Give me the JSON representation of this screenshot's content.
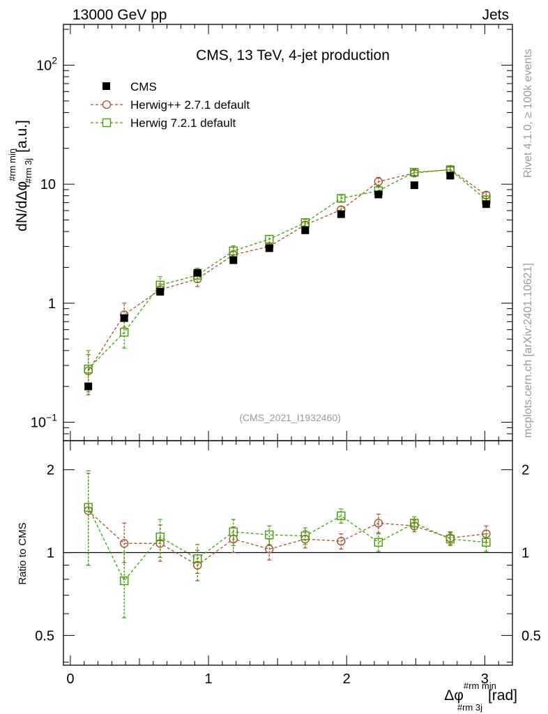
{
  "header": {
    "left": "13000 GeV pp",
    "right": "Jets"
  },
  "side_text": {
    "top": "Rivet 4.1.0, ≥ 100k events",
    "bottom": "mcplots.cern.ch [arXiv:2401.10621]"
  },
  "analysis_id": "(CMS_2021_I1932460)",
  "colors": {
    "cms": "#000000",
    "herwigpp": "#a0522d",
    "herwig7": "#3f9f00"
  },
  "chart_data": [
    {
      "type": "scatter",
      "title": "CMS, 13 TeV, 4-jet production",
      "ylabel": {
        "main": "dN/dΔφ",
        "sup": "#rm min",
        "sub": "#rm 3j",
        "unit": "[a.u.]"
      },
      "yscale": "log",
      "ylim": [
        0.07,
        220
      ],
      "xlim": [
        -0.05,
        3.2
      ],
      "yticks": [
        {
          "value": 0.1,
          "base": "10",
          "exp": "−1"
        },
        {
          "value": 1,
          "label": "1"
        },
        {
          "value": 10,
          "label": "10"
        },
        {
          "value": 100,
          "base": "10",
          "exp": "2"
        }
      ],
      "legend": [
        "CMS",
        "Herwig++ 2.7.1 default",
        "Herwig 7.2.1 default"
      ],
      "x": [
        0.13,
        0.39,
        0.65,
        0.92,
        1.18,
        1.44,
        1.7,
        1.96,
        2.23,
        2.49,
        2.75,
        3.01
      ],
      "series": [
        {
          "name": "CMS",
          "values": [
            0.2,
            0.75,
            1.25,
            1.8,
            2.3,
            2.9,
            4.1,
            5.6,
            8.2,
            9.8,
            11.8,
            6.8
          ]
        },
        {
          "name": "Herwig++ 2.7.1 default",
          "values": [
            0.27,
            0.8,
            1.3,
            1.6,
            2.55,
            3.0,
            4.55,
            6.1,
            10.5,
            12.4,
            13.3,
            8.1
          ],
          "err_low": [
            0.1,
            0.17,
            0.13,
            0.22,
            0.22,
            0.17,
            0.3,
            0.4,
            0.9,
            0.7,
            0.7,
            0.5
          ],
          "err_high": [
            0.1,
            0.2,
            0.15,
            0.25,
            0.22,
            0.17,
            0.3,
            0.4,
            0.9,
            0.7,
            0.7,
            0.5
          ]
        },
        {
          "name": "Herwig 7.2.1 default",
          "values": [
            0.28,
            0.57,
            1.42,
            1.72,
            2.75,
            3.45,
            4.75,
            7.6,
            8.8,
            12.6,
            13.2,
            7.4
          ],
          "err_low": [
            0.1,
            0.15,
            0.22,
            0.22,
            0.28,
            0.26,
            0.32,
            0.48,
            0.75,
            0.75,
            0.7,
            0.55
          ],
          "err_high": [
            0.12,
            0.15,
            0.25,
            0.25,
            0.28,
            0.26,
            0.32,
            0.48,
            0.75,
            0.75,
            0.7,
            0.55
          ]
        }
      ]
    },
    {
      "type": "scatter",
      "title": "",
      "ylabel": "Ratio to CMS",
      "xlabel": {
        "main": "Δφ",
        "sup": "#rm min",
        "sub": "#rm 3j",
        "unit": "[rad]"
      },
      "yscale": "log",
      "ylim": [
        0.39,
        2.55
      ],
      "xlim": [
        -0.05,
        3.2
      ],
      "reference_line": 1,
      "yticks": [
        {
          "value": 0.5,
          "label": "0.5"
        },
        {
          "value": 1,
          "label": "1"
        },
        {
          "value": 2,
          "label": "2"
        }
      ],
      "xticks": [
        {
          "value": 0,
          "label": "0"
        },
        {
          "value": 1,
          "label": "1"
        },
        {
          "value": 2,
          "label": "2"
        },
        {
          "value": 3,
          "label": "3"
        }
      ],
      "x": [
        0.13,
        0.39,
        0.65,
        0.92,
        1.18,
        1.44,
        1.7,
        1.96,
        2.23,
        2.49,
        2.75,
        3.01
      ],
      "series": [
        {
          "name": "Herwig++ 2.7.1 default",
          "values": [
            1.42,
            1.08,
            1.08,
            0.9,
            1.12,
            1.03,
            1.12,
            1.1,
            1.28,
            1.25,
            1.13,
            1.17
          ],
          "err_low": [
            0.52,
            0.16,
            0.15,
            0.11,
            0.12,
            0.09,
            0.08,
            0.07,
            0.1,
            0.06,
            0.06,
            0.08
          ],
          "err_high": [
            0.52,
            0.2,
            0.18,
            0.12,
            0.12,
            0.09,
            0.08,
            0.07,
            0.1,
            0.06,
            0.06,
            0.08
          ]
        },
        {
          "name": "Herwig 7.2.1 default",
          "values": [
            1.46,
            0.79,
            1.14,
            0.95,
            1.19,
            1.16,
            1.15,
            1.36,
            1.09,
            1.28,
            1.12,
            1.09
          ],
          "err_low": [
            0.56,
            0.21,
            0.18,
            0.11,
            0.13,
            0.09,
            0.08,
            0.08,
            0.08,
            0.07,
            0.06,
            0.08
          ],
          "err_high": [
            0.52,
            0.21,
            0.18,
            0.12,
            0.13,
            0.09,
            0.08,
            0.08,
            0.08,
            0.07,
            0.06,
            0.08
          ]
        }
      ]
    }
  ]
}
